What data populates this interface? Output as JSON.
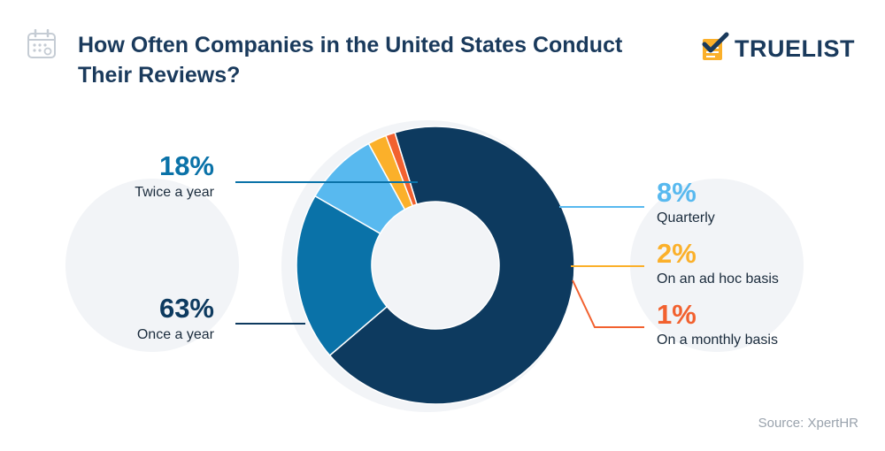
{
  "header": {
    "title": "How Often Companies in the United States Conduct Their Reviews?",
    "logo_text": "TRUELIST"
  },
  "chart_data": {
    "type": "pie",
    "title": "How Often Companies in the United States Conduct Their Reviews?",
    "donut": true,
    "slices": [
      {
        "label": "Once a year",
        "value": 63,
        "value_label": "63%",
        "color": "#0d3a5f"
      },
      {
        "label": "Twice a year",
        "value": 18,
        "value_label": "18%",
        "color": "#0a72a8"
      },
      {
        "label": "Quarterly",
        "value": 8,
        "value_label": "8%",
        "color": "#58b9ef"
      },
      {
        "label": "On an ad hoc basis",
        "value": 2,
        "value_label": "2%",
        "color": "#fbb02a"
      },
      {
        "label": "On a monthly basis",
        "value": 1,
        "value_label": "1%",
        "color": "#f2612f"
      }
    ]
  },
  "source": "Source: XpertHR",
  "icons": {
    "calendar": "calendar-icon",
    "logo": "checklist-logo-icon"
  },
  "colors": {
    "title": "#1a3a5c",
    "background_circle": "#f2f4f7",
    "source_text": "#9aa3ad"
  }
}
